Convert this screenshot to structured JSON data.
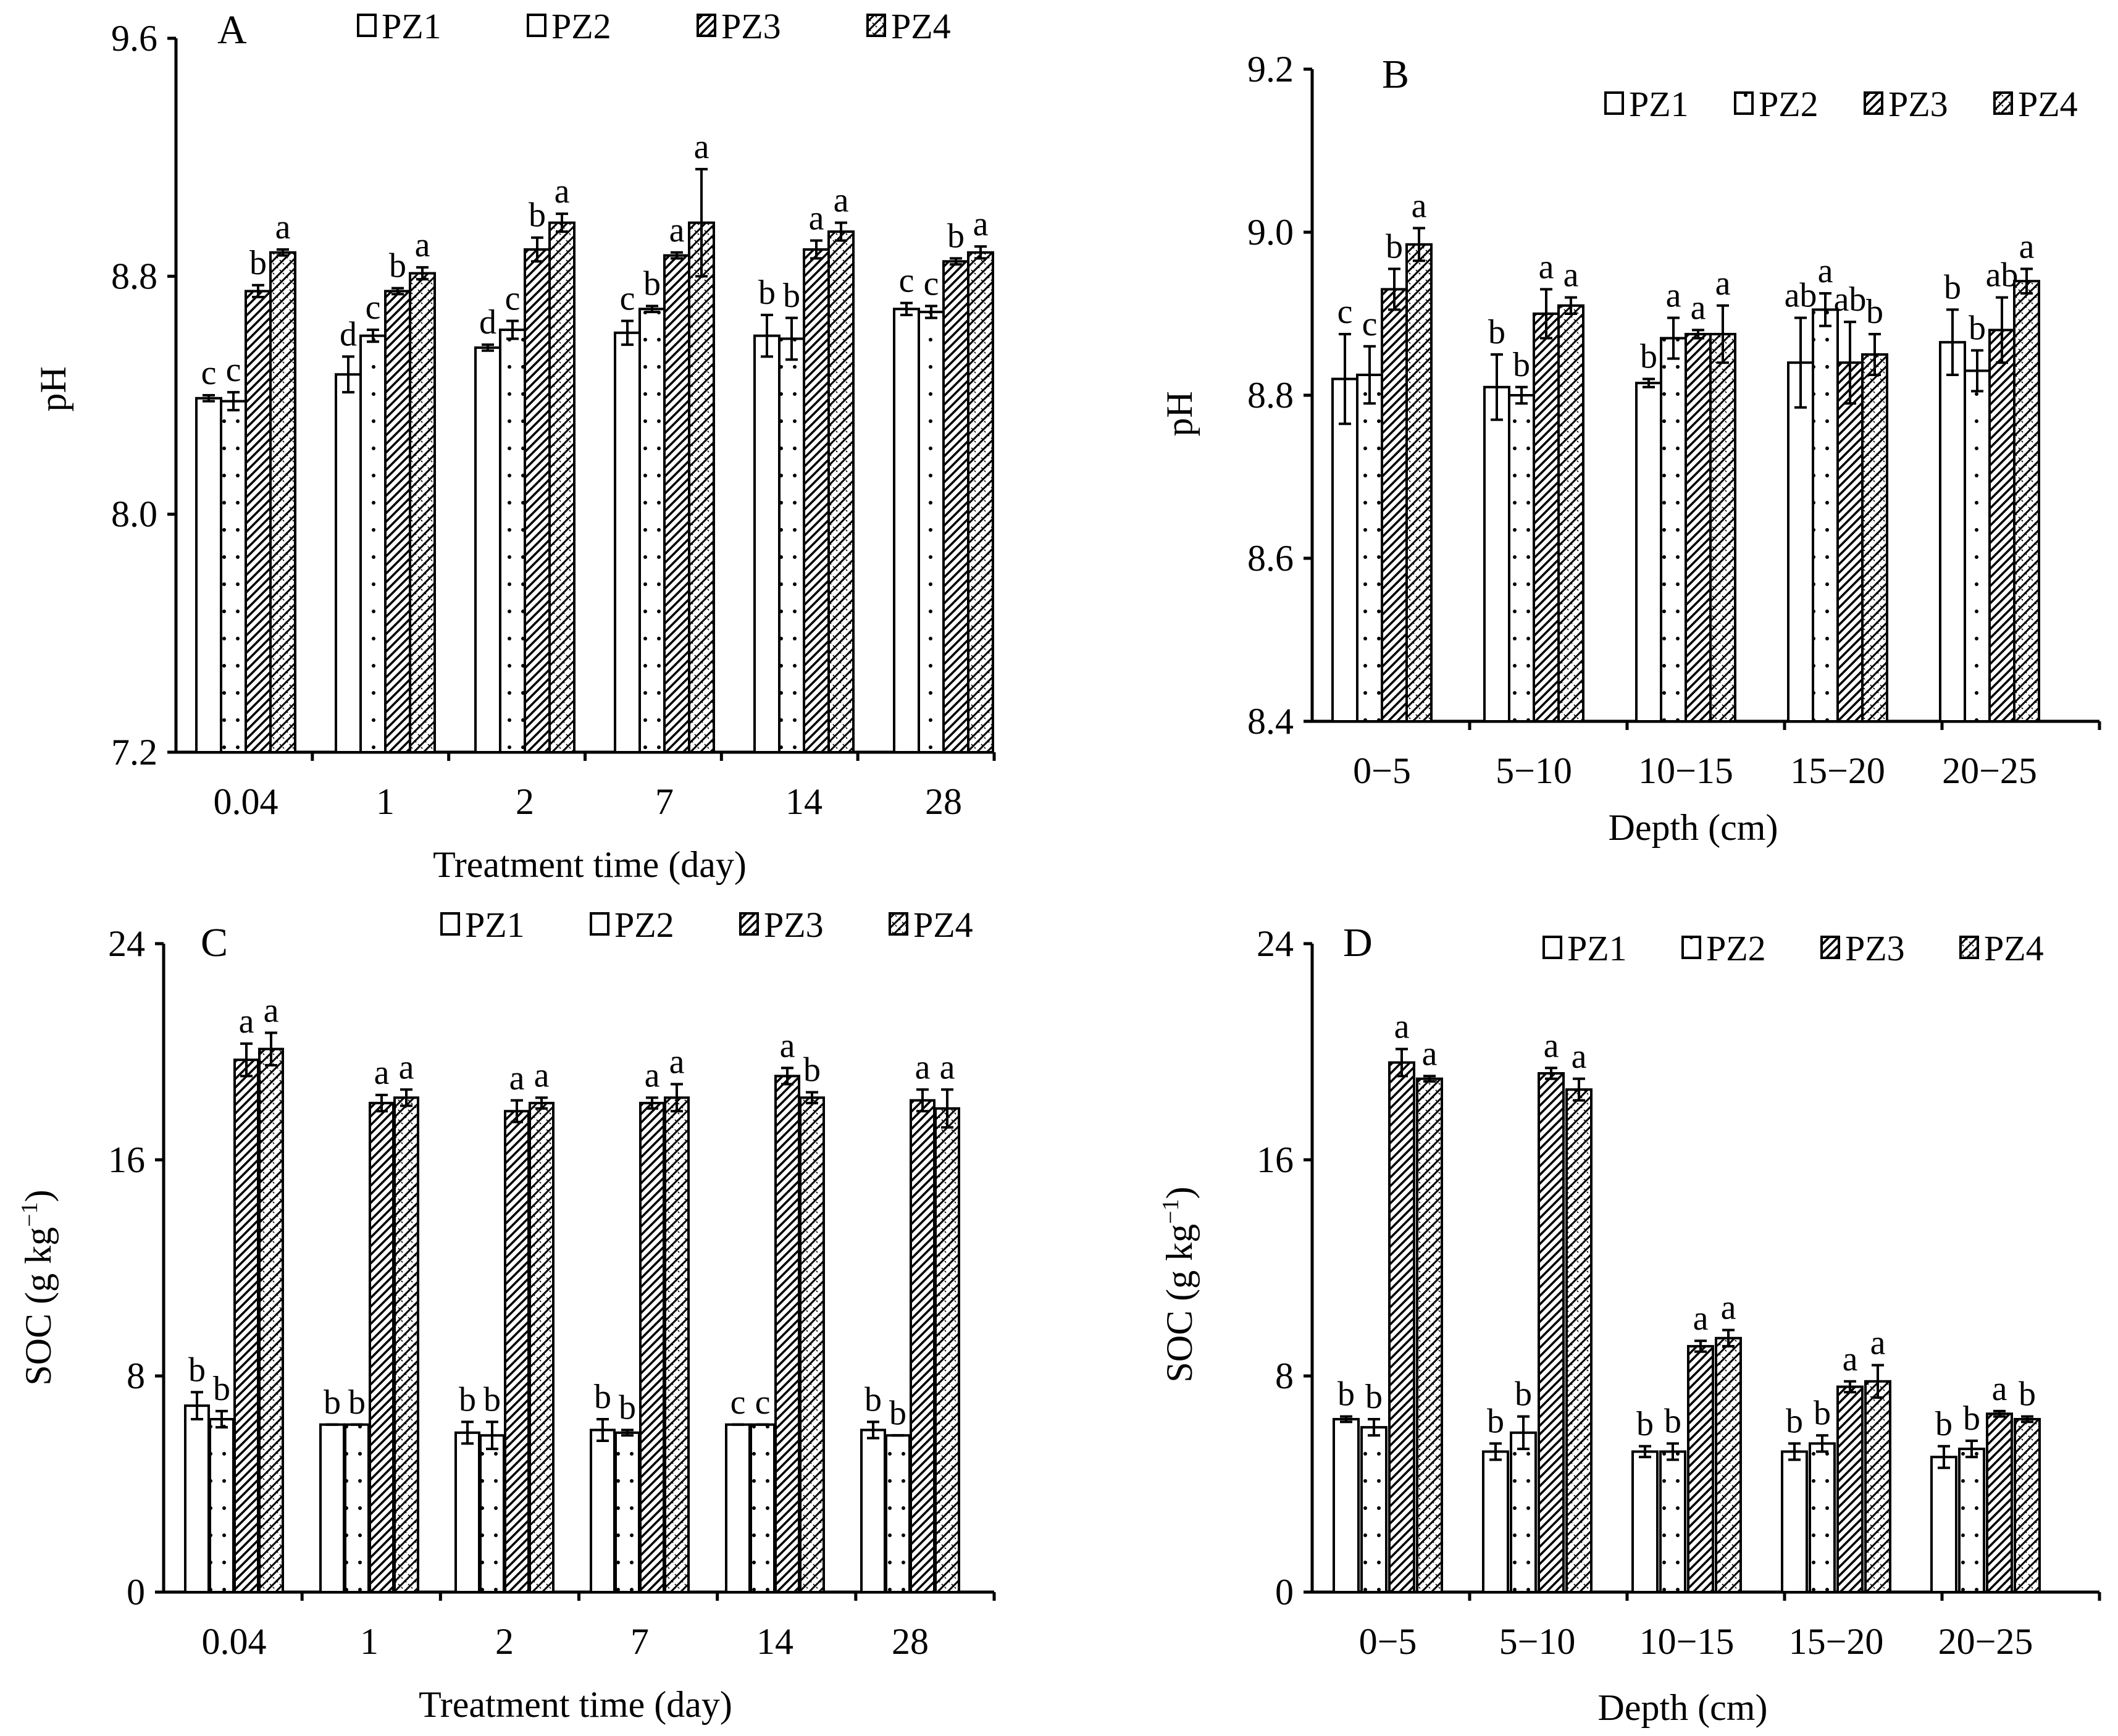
{
  "colors": {
    "ink": "#000000",
    "paper": "#ffffff"
  },
  "chart_data": [
    {
      "panel": "A",
      "type": "bar",
      "xlabel": "Treatment time (day)",
      "ylabel": "pH",
      "ylim": [
        7.2,
        9.6
      ],
      "yticks": [
        "7.2",
        "8.0",
        "8.8",
        "9.6"
      ],
      "legend": [
        "PZ1",
        "PZ2",
        "PZ3",
        "PZ4"
      ],
      "categories": [
        "0.04",
        "1",
        "2",
        "7",
        "14",
        "28"
      ],
      "series": [
        {
          "name": "PZ1",
          "values": [
            8.39,
            8.47,
            8.56,
            8.61,
            8.6,
            8.69
          ],
          "err": [
            0.01,
            0.06,
            0.01,
            0.04,
            0.07,
            0.02
          ],
          "letters": [
            "c",
            "d",
            "d",
            "c",
            "b",
            "c"
          ]
        },
        {
          "name": "PZ2",
          "values": [
            8.38,
            8.6,
            8.62,
            8.69,
            8.59,
            8.68
          ],
          "err": [
            0.03,
            0.02,
            0.03,
            0.01,
            0.07,
            0.02
          ],
          "letters": [
            "c",
            "c",
            "c",
            "b",
            "b",
            "c"
          ]
        },
        {
          "name": "PZ3",
          "values": [
            8.75,
            8.75,
            8.89,
            8.87,
            8.89,
            8.85
          ],
          "err": [
            0.02,
            0.01,
            0.04,
            0.01,
            0.03,
            0.01
          ],
          "letters": [
            "b",
            "b",
            "b",
            "a",
            "a",
            "b"
          ]
        },
        {
          "name": "PZ4",
          "values": [
            8.88,
            8.81,
            8.98,
            8.98,
            8.95,
            8.88
          ],
          "err": [
            0.01,
            0.02,
            0.03,
            0.18,
            0.03,
            0.02
          ],
          "letters": [
            "a",
            "a",
            "a",
            "a",
            "a",
            "a"
          ]
        }
      ]
    },
    {
      "panel": "B",
      "type": "bar",
      "xlabel": "Depth (cm)",
      "ylabel": "pH",
      "ylim": [
        8.4,
        9.2
      ],
      "yticks": [
        "8.4",
        "8.6",
        "8.8",
        "9.0",
        "9.2"
      ],
      "legend": [
        "PZ1",
        "PZ2",
        "PZ3",
        "PZ4"
      ],
      "categories": [
        "0−5",
        "5−10",
        "10−15",
        "15−20",
        "20−25"
      ],
      "series": [
        {
          "name": "PZ1",
          "values": [
            8.82,
            8.81,
            8.815,
            8.84,
            8.865
          ],
          "err": [
            0.055,
            0.04,
            0.005,
            0.055,
            0.04
          ],
          "letters": [
            "c",
            "b",
            "b",
            "ab",
            "b"
          ]
        },
        {
          "name": "PZ2",
          "values": [
            8.825,
            8.8,
            8.87,
            8.905,
            8.83
          ],
          "err": [
            0.035,
            0.01,
            0.025,
            0.02,
            0.025
          ],
          "letters": [
            "c",
            "b",
            "a",
            "a",
            "b"
          ]
        },
        {
          "name": "PZ3",
          "values": [
            8.93,
            8.9,
            8.875,
            8.84,
            8.88
          ],
          "err": [
            0.025,
            0.03,
            0.005,
            0.05,
            0.04
          ],
          "letters": [
            "b",
            "a",
            "a",
            "ab",
            "ab"
          ]
        },
        {
          "name": "PZ4",
          "values": [
            8.985,
            8.91,
            8.875,
            8.85,
            8.94
          ],
          "err": [
            0.02,
            0.01,
            0.035,
            0.025,
            0.015
          ],
          "letters": [
            "a",
            "a",
            "a",
            "b",
            "a"
          ]
        }
      ]
    },
    {
      "panel": "C",
      "type": "bar",
      "xlabel": "Treatment time (day)",
      "ylabel": "SOC (g kg",
      "ylabel_sup": "−1",
      "ylabel_end": ")",
      "ylim": [
        0,
        24
      ],
      "yticks": [
        "0",
        "8",
        "16",
        "24"
      ],
      "legend": [
        "PZ1",
        "PZ2",
        "PZ3",
        "PZ4"
      ],
      "categories": [
        "0.04",
        "1",
        "2",
        "7",
        "14",
        "28"
      ],
      "series": [
        {
          "name": "PZ1",
          "values": [
            6.9,
            6.2,
            5.9,
            6.0,
            6.2,
            6.0
          ],
          "err": [
            0.5,
            0.0,
            0.4,
            0.4,
            0.0,
            0.3
          ],
          "letters": [
            "b",
            "b",
            "b",
            "b",
            "c",
            "b"
          ]
        },
        {
          "name": "PZ2",
          "values": [
            6.4,
            6.2,
            5.8,
            5.9,
            6.2,
            5.8
          ],
          "err": [
            0.3,
            0.0,
            0.5,
            0.1,
            0.0,
            0.0
          ],
          "letters": [
            "b",
            "b",
            "b",
            "b",
            "c",
            "b"
          ]
        },
        {
          "name": "PZ3",
          "values": [
            19.7,
            18.1,
            17.8,
            18.1,
            19.1,
            18.2
          ],
          "err": [
            0.6,
            0.3,
            0.4,
            0.2,
            0.3,
            0.4
          ],
          "letters": [
            "a",
            "a",
            "a",
            "a",
            "a",
            "a"
          ]
        },
        {
          "name": "PZ4",
          "values": [
            20.1,
            18.3,
            18.1,
            18.3,
            18.3,
            17.9
          ],
          "err": [
            0.6,
            0.3,
            0.2,
            0.5,
            0.2,
            0.7
          ],
          "letters": [
            "a",
            "a",
            "a",
            "a",
            "b",
            "a"
          ]
        }
      ]
    },
    {
      "panel": "D",
      "type": "bar",
      "xlabel": "Depth (cm)",
      "ylabel": "SOC (g kg",
      "ylabel_sup": "−1",
      "ylabel_end": ")",
      "ylim": [
        0,
        24
      ],
      "yticks": [
        "0",
        "8",
        "16",
        "24"
      ],
      "legend": [
        "PZ1",
        "PZ2",
        "PZ3",
        "PZ4"
      ],
      "categories": [
        "0−5",
        "5−10",
        "10−15",
        "15−20",
        "20−25"
      ],
      "series": [
        {
          "name": "PZ1",
          "values": [
            6.4,
            5.2,
            5.2,
            5.2,
            5.0
          ],
          "err": [
            0.1,
            0.3,
            0.2,
            0.3,
            0.4
          ],
          "letters": [
            "b",
            "b",
            "b",
            "b",
            "b"
          ]
        },
        {
          "name": "PZ2",
          "values": [
            6.1,
            5.9,
            5.2,
            5.5,
            5.3
          ],
          "err": [
            0.3,
            0.6,
            0.3,
            0.3,
            0.3
          ],
          "letters": [
            "b",
            "b",
            "b",
            "b",
            "b"
          ]
        },
        {
          "name": "PZ3",
          "values": [
            19.6,
            19.2,
            9.1,
            7.6,
            6.6
          ],
          "err": [
            0.5,
            0.2,
            0.2,
            0.2,
            0.1
          ],
          "letters": [
            "a",
            "a",
            "a",
            "a",
            "a"
          ]
        },
        {
          "name": "PZ4",
          "values": [
            19.0,
            18.6,
            9.4,
            7.8,
            6.4
          ],
          "err": [
            0.1,
            0.4,
            0.3,
            0.6,
            0.1
          ],
          "letters": [
            "a",
            "a",
            "a",
            "a",
            "b"
          ]
        }
      ]
    }
  ]
}
